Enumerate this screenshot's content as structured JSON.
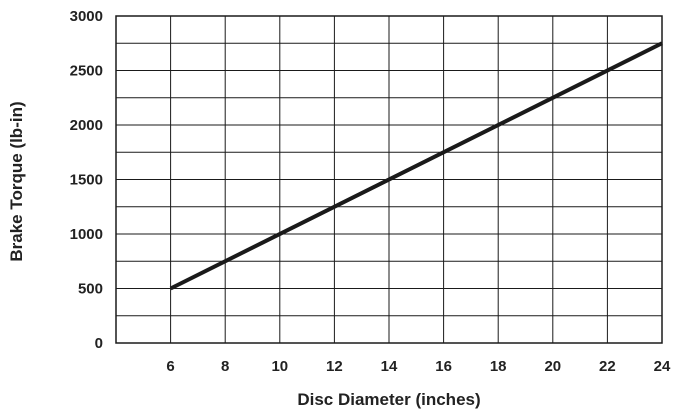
{
  "chart_data": {
    "type": "line",
    "title": "",
    "xlabel": "Disc Diameter (inches)",
    "ylabel": "Brake Torque (lb-in)",
    "xlim": [
      4,
      24
    ],
    "ylim": [
      0,
      3000
    ],
    "x_ticks": [
      6,
      8,
      10,
      12,
      14,
      16,
      18,
      20,
      22,
      24
    ],
    "y_ticks": [
      0,
      500,
      1000,
      1500,
      2000,
      2500,
      3000
    ],
    "x_grid_step": 2,
    "y_grid_step": 250,
    "grid": true,
    "legend": "none",
    "line_color": "#1a1a1a",
    "grid_color": "#1a1a1a",
    "series": [
      {
        "x": [
          6,
          24
        ],
        "y": [
          500,
          2750
        ]
      }
    ]
  }
}
